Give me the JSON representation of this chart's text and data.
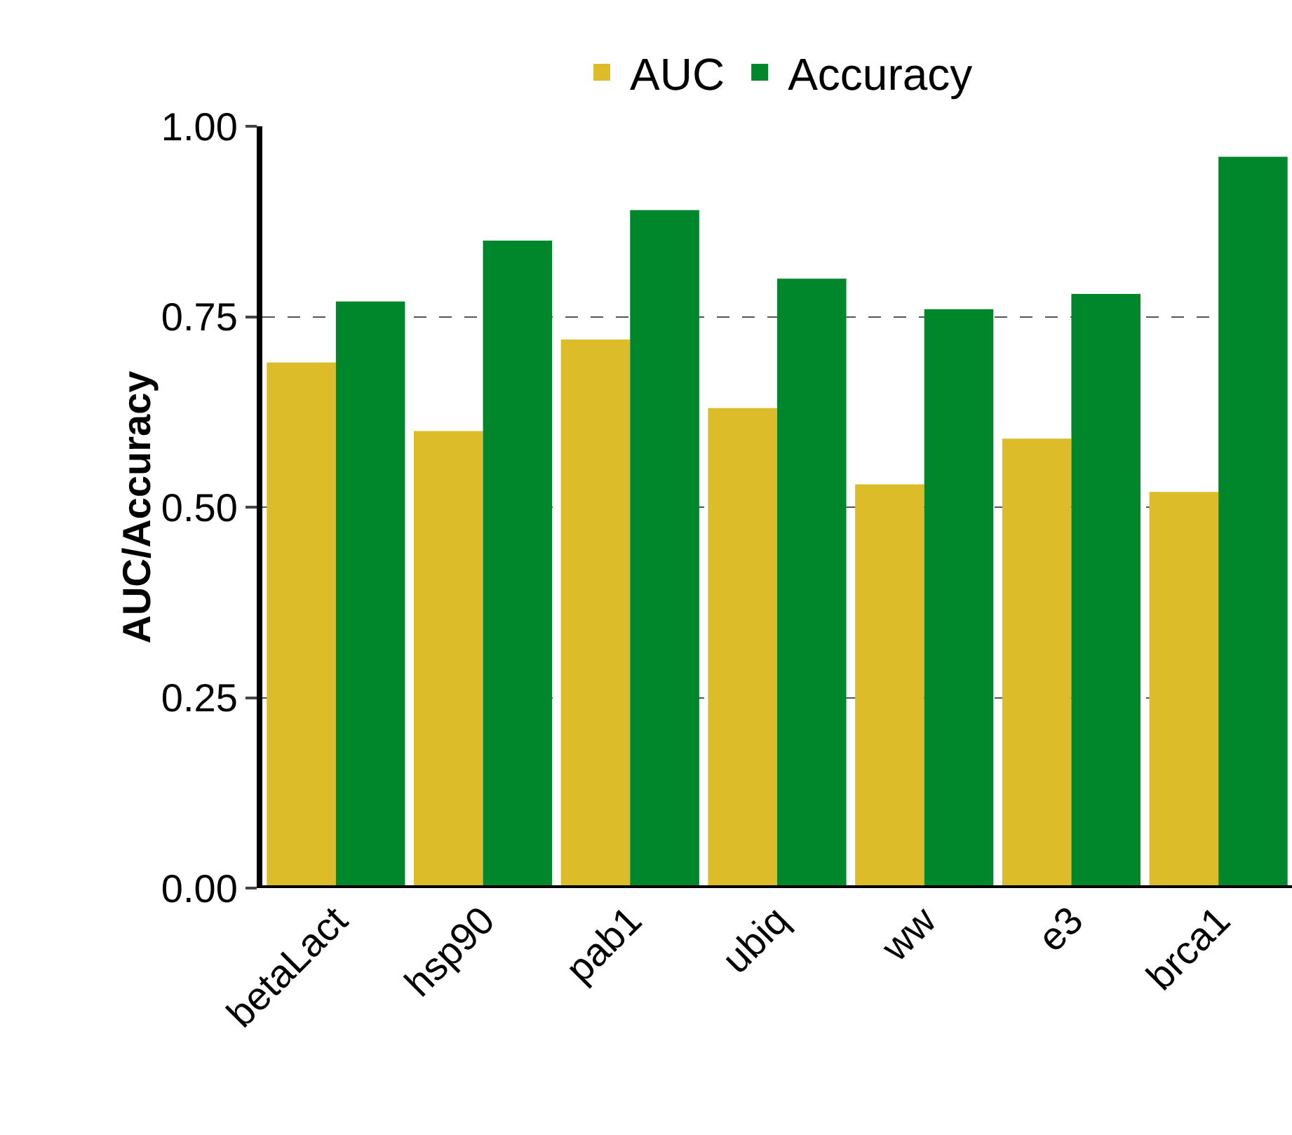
{
  "chart_data": {
    "type": "bar",
    "ylabel": "AUC/Accuracy",
    "categories": [
      "betaLact",
      "hsp90",
      "pab1",
      "ubiq",
      "ww",
      "e3",
      "brca1"
    ],
    "series": [
      {
        "name": "AUC",
        "color": "#dcbc28",
        "values": [
          0.69,
          0.6,
          0.72,
          0.63,
          0.53,
          0.59,
          0.52
        ]
      },
      {
        "name": "Accuracy",
        "color": "#00872c",
        "values": [
          0.77,
          0.85,
          0.89,
          0.8,
          0.76,
          0.78,
          0.96
        ]
      }
    ],
    "ylim": [
      0,
      1
    ],
    "yticks": [
      {
        "value": 0,
        "label": "0.00"
      },
      {
        "value": 0.25,
        "label": "0.25"
      },
      {
        "value": 0.5,
        "label": "0.50"
      },
      {
        "value": 0.75,
        "label": "0.75"
      },
      {
        "value": 1,
        "label": "1.00"
      }
    ],
    "grid": "y",
    "legend": "top"
  }
}
